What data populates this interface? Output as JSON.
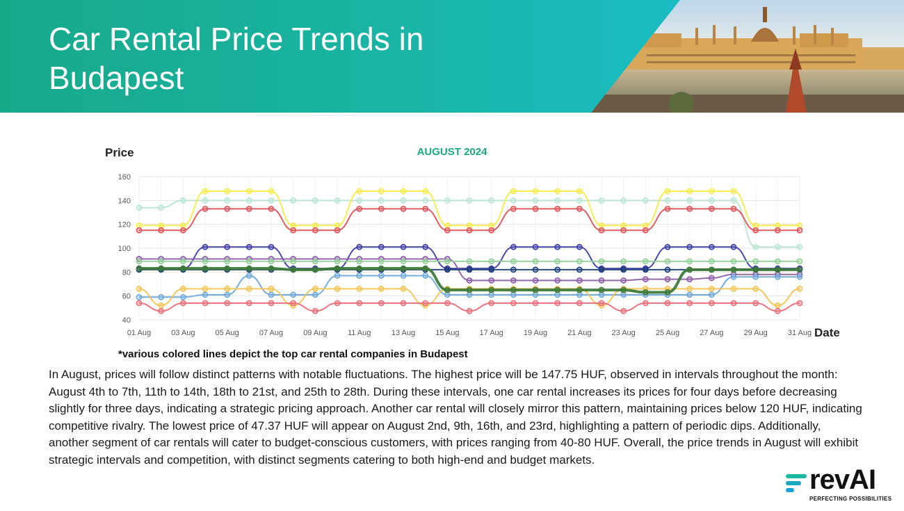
{
  "header": {
    "title": "Car Rental Price Trends in Budapest"
  },
  "chart_title": "AUGUST 2024",
  "footnote": "*various colored lines depict the top car rental companies in Budapest",
  "description": "In August, prices will follow distinct patterns with notable fluctuations. The highest price will be 147.75 HUF, observed in intervals throughout the month: August 4th to 7th, 11th to 14th, 18th to 21st, and 25th to 28th. During these intervals, one car rental increases its prices for four days before decreasing slightly for three days, indicating a strategic pricing approach. Another car rental will closely mirror this pattern, maintaining prices below 120 HUF, indicating competitive rivalry. The lowest price of 47.37 HUF will appear on August 2nd, 9th, 16th, and 23rd, highlighting a pattern of periodic dips. Additionally, another segment of car rentals will cater to budget-conscious customers, with prices ranging from 40-80 HUF. Overall, the price trends in August will exhibit strategic intervals and competition, with distinct segments catering to both high-end and budget markets.",
  "logo": {
    "word": "revAI",
    "tagline": "PERFECTING POSSIBILITIES",
    "colors": [
      "#1db8a0",
      "#1a9fd8"
    ]
  },
  "chart_data": {
    "type": "line",
    "title": "AUGUST 2024",
    "xlabel": "Date",
    "ylabel": "Price",
    "ylim": [
      40,
      160
    ],
    "yticks": [
      40,
      60,
      80,
      100,
      120,
      140,
      160
    ],
    "xtick_labels": [
      "01 Aug",
      "03 Aug",
      "05 Aug",
      "07 Aug",
      "09 Aug",
      "11 Aug",
      "13 Aug",
      "15 Aug",
      "17 Aug",
      "19 Aug",
      "21 Aug",
      "23 Aug",
      "25 Aug",
      "27 Aug",
      "29 Aug",
      "31 Aug"
    ],
    "grid": true,
    "x": [
      1,
      2,
      3,
      4,
      5,
      6,
      7,
      8,
      9,
      10,
      11,
      12,
      13,
      14,
      15,
      16,
      17,
      18,
      19,
      20,
      21,
      22,
      23,
      24,
      25,
      26,
      27,
      28,
      29,
      30,
      31
    ],
    "series": [
      {
        "color": "#b9e6d2",
        "values": [
          134,
          134,
          140,
          140,
          140,
          140,
          140,
          140,
          140,
          140,
          140,
          140,
          140,
          140,
          140,
          140,
          140,
          140,
          140,
          140,
          140,
          140,
          140,
          140,
          140,
          140,
          140,
          140,
          101,
          101,
          101
        ]
      },
      {
        "color": "#f5ec4a",
        "values": [
          119,
          119,
          119,
          147.75,
          147.75,
          147.75,
          147.75,
          119,
          119,
          119,
          147.75,
          147.75,
          147.75,
          147.75,
          119,
          119,
          119,
          147.75,
          147.75,
          147.75,
          147.75,
          119,
          119,
          119,
          147.75,
          147.75,
          147.75,
          147.75,
          119,
          119,
          119
        ]
      },
      {
        "color": "#e0545a",
        "values": [
          115,
          115,
          115,
          133,
          133,
          133,
          133,
          115,
          115,
          115,
          133,
          133,
          133,
          133,
          115,
          115,
          115,
          133,
          133,
          133,
          133,
          115,
          115,
          115,
          133,
          133,
          133,
          133,
          115,
          115,
          115
        ]
      },
      {
        "color": "#3e3fa5",
        "values": [
          83,
          83,
          83,
          101,
          101,
          101,
          101,
          83,
          83,
          83,
          101,
          101,
          101,
          101,
          83,
          83,
          83,
          101,
          101,
          101,
          101,
          83,
          83,
          83,
          101,
          101,
          101,
          101,
          83,
          83,
          83
        ]
      },
      {
        "color": "#8e5fa8",
        "values": [
          91,
          91,
          91,
          91,
          91,
          91,
          91,
          91,
          91,
          91,
          91,
          91,
          91,
          91,
          91,
          73,
          73,
          73,
          73,
          73,
          73,
          73,
          73,
          74,
          74,
          74,
          75,
          78,
          78,
          78,
          78
        ]
      },
      {
        "color": "#93d09a",
        "values": [
          89,
          89,
          89,
          89,
          89,
          89,
          89,
          89,
          89,
          89,
          89,
          89,
          89,
          89,
          89,
          89,
          89,
          89,
          89,
          89,
          89,
          89,
          89,
          89,
          89,
          89,
          89,
          89,
          89,
          89,
          89
        ]
      },
      {
        "color": "#6fa8dc",
        "values": [
          59,
          59,
          59,
          61,
          61,
          77,
          61,
          61,
          61,
          77,
          77,
          77,
          77,
          77,
          61,
          61,
          61,
          61,
          61,
          61,
          61,
          61,
          61,
          61,
          61,
          61,
          61,
          76,
          76,
          76,
          76
        ]
      },
      {
        "color": "#1f3f7a",
        "values": [
          82,
          82,
          82,
          82,
          82,
          82,
          82,
          82,
          82,
          82,
          82,
          82,
          82,
          82,
          82,
          82,
          82,
          82,
          82,
          82,
          82,
          82,
          82,
          82,
          82,
          82,
          82,
          82,
          82,
          82,
          82
        ]
      },
      {
        "color": "#f2c452",
        "values": [
          66,
          52,
          66,
          66,
          66,
          66,
          66,
          52,
          66,
          66,
          66,
          66,
          66,
          52,
          66,
          66,
          66,
          66,
          66,
          66,
          66,
          52,
          66,
          66,
          66,
          66,
          66,
          66,
          66,
          52,
          66
        ]
      },
      {
        "color": "#eb6e78",
        "values": [
          54,
          47.37,
          54,
          54,
          54,
          54,
          54,
          54,
          47.37,
          54,
          54,
          54,
          54,
          54,
          54,
          47.37,
          54,
          54,
          54,
          54,
          54,
          54,
          47.37,
          54,
          54,
          54,
          54,
          54,
          54,
          47.37,
          54
        ]
      },
      {
        "color": "#3e7a3a",
        "values": [
          83,
          83,
          83,
          83,
          83,
          83,
          83,
          82,
          82,
          83,
          83,
          83,
          83,
          83,
          65,
          65,
          65,
          65,
          65,
          65,
          65,
          65,
          65,
          63,
          63,
          82,
          82,
          82,
          82,
          82,
          82
        ]
      }
    ]
  }
}
